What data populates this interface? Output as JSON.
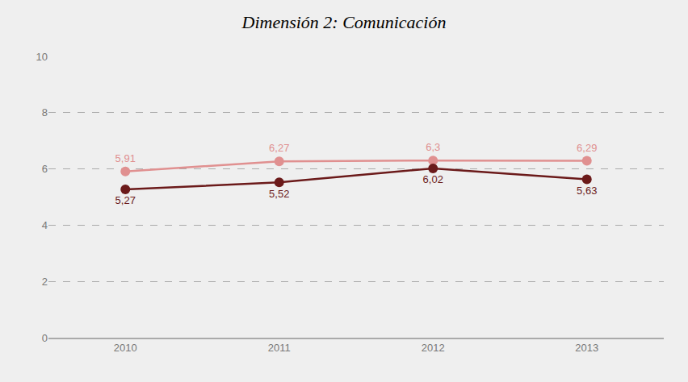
{
  "chart_data": {
    "type": "line",
    "title": "Dimensión 2: Comunicación",
    "x": [
      2010,
      2011,
      2012,
      2013
    ],
    "series": [
      {
        "color": "#e09090",
        "values": [
          5.91,
          6.27,
          6.3,
          6.29
        ],
        "value_labels": [
          "5,91",
          "6,27",
          "6,3",
          "6,29"
        ]
      },
      {
        "color": "#6b1a1a",
        "values": [
          5.27,
          5.52,
          6.02,
          5.63
        ],
        "value_labels": [
          "5,27",
          "5,52",
          "6,02",
          "5,63"
        ]
      }
    ],
    "xlim": [
      2009.5,
      2013.5
    ],
    "xticks": [
      2010,
      2011,
      2012,
      2013
    ],
    "ylim": [
      0,
      10
    ],
    "yticks": [
      0,
      2,
      4,
      6,
      8,
      10
    ],
    "grid": true,
    "data_labels": true,
    "marker": "circle"
  }
}
